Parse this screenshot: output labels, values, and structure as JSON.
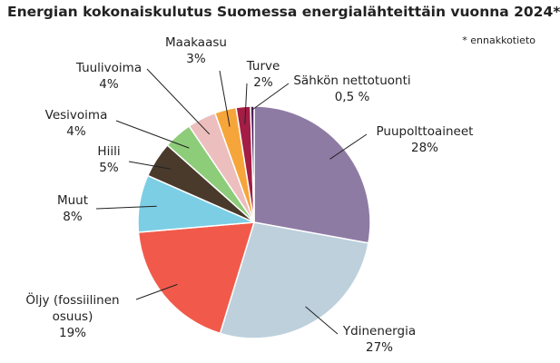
{
  "chart_data": {
    "type": "pie",
    "title": "Energian kokonaiskulutus Suomessa energialähteittäin vuonna 2024*",
    "note": "* ennakkotieto",
    "categories": [
      "Puupolttoaineet",
      "Ydinenergia",
      "Öljy (fossiilinen osuus)",
      "Muut",
      "Hiili",
      "Vesivoima",
      "Tuulivoima",
      "Maakaasu",
      "Turve",
      "Sähkön nettotuonti"
    ],
    "values": [
      28,
      27,
      19,
      8,
      5,
      4,
      4,
      3,
      2,
      0.5
    ],
    "value_labels": [
      "28%",
      "27%",
      "19%",
      "8%",
      "5%",
      "4%",
      "4%",
      "3%",
      "2%",
      "0,5 %"
    ],
    "colors": [
      "#8e7ba4",
      "#bdd0dc",
      "#f15a4b",
      "#7ccee4",
      "#4a3a2b",
      "#8dcc79",
      "#ecbebe",
      "#f6a53b",
      "#a31d45",
      "#4a1d5a"
    ]
  }
}
